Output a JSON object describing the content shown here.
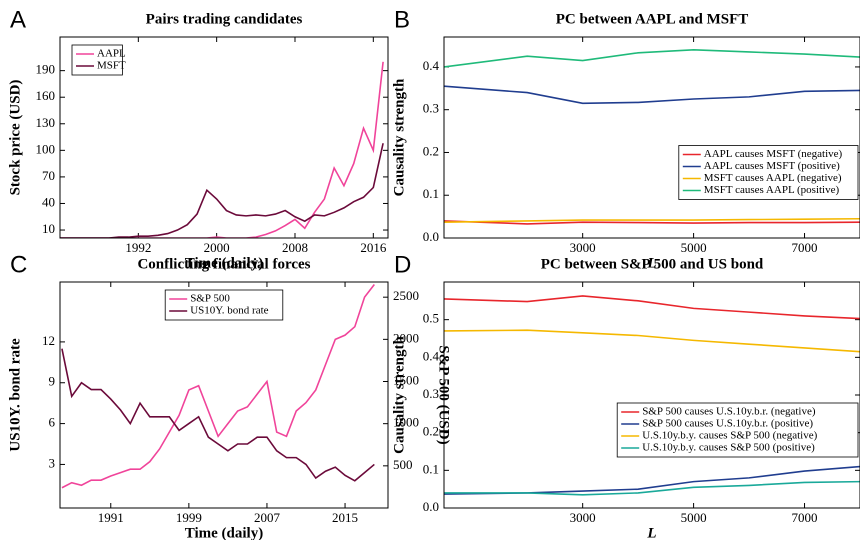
{
  "chart_data": [
    {
      "type": "line",
      "panel_label": "A",
      "title": "Pairs trading candidates",
      "xlabel": "Time (daily)",
      "ylabel": "Stock price (USD)",
      "x": [
        1984,
        1985,
        1986,
        1987,
        1988,
        1989,
        1990,
        1991,
        1992,
        1993,
        1994,
        1995,
        1996,
        1997,
        1998,
        1999,
        2000,
        2001,
        2002,
        2003,
        2004,
        2005,
        2006,
        2007,
        2008,
        2009,
        2010,
        2011,
        2012,
        2013,
        2014,
        2015,
        2016,
        2017
      ],
      "xlim": [
        1984,
        2017.5
      ],
      "xticks": [
        1992,
        2000,
        2008,
        2016
      ],
      "ylim": [
        1,
        228
      ],
      "yticks": [
        10,
        40,
        70,
        100,
        130,
        160,
        190
      ],
      "legend": "upper left",
      "series": [
        {
          "name": "AAPL",
          "color": "#f0449a",
          "values": [
            1,
            1,
            1,
            1,
            1,
            1,
            1,
            1,
            1,
            1,
            1,
            1,
            1,
            1,
            1,
            1,
            2,
            1,
            1,
            1,
            2,
            5,
            9,
            15,
            22,
            12,
            30,
            45,
            80,
            60,
            85,
            125,
            100,
            200
          ]
        },
        {
          "name": "MSFT",
          "color": "#6b0a3a",
          "values": [
            1,
            1,
            1,
            1,
            1,
            1,
            2,
            2,
            3,
            3,
            4,
            6,
            10,
            16,
            28,
            55,
            45,
            32,
            27,
            26,
            27,
            26,
            28,
            32,
            25,
            20,
            27,
            26,
            30,
            35,
            42,
            47,
            58,
            108
          ]
        }
      ]
    },
    {
      "type": "line",
      "panel_label": "B",
      "title": "PC between AAPL and MSFT",
      "xlabel": "L",
      "xlabel_italic": true,
      "ylabel": "Causality strength",
      "x": [
        500,
        2000,
        3000,
        4000,
        5000,
        6000,
        7000,
        8000
      ],
      "xlim": [
        500,
        8000
      ],
      "xticks": [
        3000,
        5000,
        7000
      ],
      "ylim": [
        0,
        0.47
      ],
      "yticks": [
        {
          "value": 0,
          "label": "0.0"
        },
        0.1,
        0.2,
        0.3,
        0.4
      ],
      "legend": "center right",
      "series": [
        {
          "name": "AAPL causes MSFT (negative)",
          "color": "#e8262c",
          "values": [
            0.04,
            0.033,
            0.037,
            0.036,
            0.035,
            0.036,
            0.036,
            0.037
          ]
        },
        {
          "name": "AAPL causes MSFT (positive)",
          "color": "#203d8f",
          "values": [
            0.355,
            0.34,
            0.315,
            0.317,
            0.325,
            0.33,
            0.343,
            0.345
          ]
        },
        {
          "name": "MSFT causes AAPL (negative)",
          "color": "#f5b800",
          "values": [
            0.037,
            0.04,
            0.042,
            0.042,
            0.042,
            0.043,
            0.044,
            0.045
          ]
        },
        {
          "name": "MSFT causes AAPL (positive)",
          "color": "#1fba7a",
          "values": [
            0.4,
            0.425,
            0.415,
            0.433,
            0.44,
            0.435,
            0.43,
            0.423
          ]
        }
      ]
    },
    {
      "type": "line",
      "panel_label": "C",
      "title": "Conflicting financial forces",
      "xlabel": "Time (daily)",
      "ylabel": "US10Y. bond rate",
      "y2label": "S&P 500 (USD)",
      "x": [
        1986,
        1987,
        1988,
        1989,
        1990,
        1991,
        1992,
        1993,
        1994,
        1995,
        1996,
        1997,
        1998,
        1999,
        2000,
        2001,
        2002,
        2003,
        2004,
        2005,
        2006,
        2007,
        2008,
        2009,
        2010,
        2011,
        2012,
        2013,
        2014,
        2015,
        2016,
        2017,
        2018
      ],
      "xlim": [
        1985.8,
        2019.4
      ],
      "xticks": [
        1991,
        1999,
        2007,
        2015
      ],
      "ylim": [
        -0.2,
        16.4
      ],
      "yticks": [
        3,
        6,
        9,
        12
      ],
      "y2lim": [
        0,
        2680
      ],
      "y2ticks": [
        500,
        1000,
        1500,
        2000,
        2500
      ],
      "legend": "upper center",
      "series": [
        {
          "name": "S&P 500",
          "color": "#f0449a",
          "axis": "y2",
          "values": [
            240,
            300,
            270,
            330,
            330,
            380,
            420,
            460,
            460,
            550,
            700,
            900,
            1100,
            1400,
            1450,
            1150,
            850,
            1000,
            1150,
            1200,
            1350,
            1500,
            900,
            850,
            1150,
            1250,
            1400,
            1700,
            2000,
            2050,
            2150,
            2500,
            2650
          ]
        },
        {
          "name": "US10Y. bond rate",
          "color": "#6b0a3a",
          "values": [
            11.5,
            8,
            9,
            8.5,
            8.5,
            7.8,
            7,
            6,
            7.5,
            6.5,
            6.5,
            6.5,
            5.5,
            6,
            6.5,
            5,
            4.5,
            4,
            4.5,
            4.5,
            5,
            5,
            4,
            3.5,
            3.5,
            3,
            2,
            2.5,
            2.8,
            2.2,
            1.8,
            2.4,
            3.0
          ]
        }
      ]
    },
    {
      "type": "line",
      "panel_label": "D",
      "title": "PC between S&P 500 and US bond",
      "xlabel": "L",
      "xlabel_italic": true,
      "ylabel": "Causality strength",
      "x": [
        500,
        2000,
        3000,
        4000,
        5000,
        6000,
        7000,
        8000
      ],
      "xlim": [
        500,
        8000
      ],
      "xticks": [
        3000,
        5000,
        7000
      ],
      "ylim": [
        0,
        0.6
      ],
      "yticks": [
        {
          "value": 0,
          "label": "0.0"
        },
        0.1,
        0.2,
        0.3,
        0.4,
        0.5
      ],
      "legend": "center right",
      "series": [
        {
          "name": "S&P 500 causes U.S.10y.b.r. (negative)",
          "color": "#e8262c",
          "values": [
            0.555,
            0.548,
            0.563,
            0.55,
            0.53,
            0.52,
            0.51,
            0.503
          ]
        },
        {
          "name": "S&P 500 causes U.S.10y.b.r. (positive)",
          "color": "#203d8f",
          "values": [
            0.037,
            0.04,
            0.045,
            0.05,
            0.07,
            0.08,
            0.098,
            0.11
          ]
        },
        {
          "name": "U.S.10y.b.y. causes S&P 500 (negative)",
          "color": "#f5b800",
          "values": [
            0.47,
            0.472,
            0.465,
            0.458,
            0.445,
            0.435,
            0.425,
            0.415
          ]
        },
        {
          "name": "U.S.10y.b.y. causes S&P 500 (positive)",
          "color": "#1aa99a",
          "values": [
            0.04,
            0.04,
            0.035,
            0.04,
            0.055,
            0.06,
            0.068,
            0.07
          ]
        }
      ]
    }
  ]
}
